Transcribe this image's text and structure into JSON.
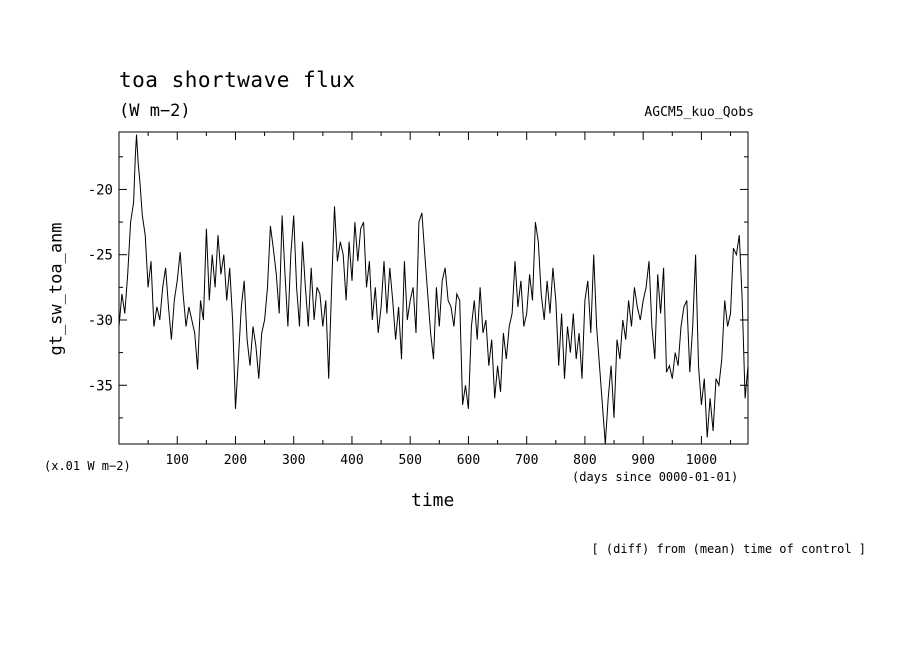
{
  "header": {
    "title": "toa shortwave flux",
    "units": "(W m−2)",
    "run_name": "AGCM5_kuo_Qobs"
  },
  "footer": {
    "note": "[ (diff) from (mean) time of control ]"
  },
  "axes": {
    "scale_note": "(x.01 W m−2)",
    "x_units": "(days since 0000-01-01)",
    "xlabel": "time",
    "ylabel": "gt_sw_toa_anm"
  },
  "chart_data": {
    "type": "line",
    "title": "toa shortwave flux",
    "xlabel": "time",
    "ylabel": "gt_sw_toa_anm",
    "xlim": [
      0,
      1080
    ],
    "ylim": [
      -39.5,
      -15.6
    ],
    "x_ticks": [
      100,
      200,
      300,
      400,
      500,
      600,
      700,
      800,
      900,
      1000
    ],
    "y_ticks": [
      -20,
      -25,
      -30,
      -35
    ],
    "grid": false,
    "series": [
      {
        "x": [
          0,
          5,
          10,
          15,
          20,
          25,
          28,
          30,
          33,
          36,
          40,
          45,
          50,
          55,
          60,
          65,
          70,
          75,
          80,
          85,
          90,
          95,
          100,
          105,
          110,
          115,
          120,
          125,
          130,
          135,
          140,
          145,
          150,
          155,
          160,
          165,
          170,
          175,
          180,
          185,
          190,
          195,
          200,
          205,
          210,
          215,
          220,
          225,
          230,
          235,
          240,
          245,
          250,
          255,
          260,
          265,
          270,
          275,
          280,
          285,
          290,
          295,
          300,
          305,
          310,
          315,
          320,
          325,
          330,
          335,
          340,
          345,
          350,
          355,
          360,
          365,
          370,
          375,
          380,
          385,
          390,
          395,
          400,
          405,
          410,
          415,
          420,
          425,
          430,
          435,
          440,
          445,
          450,
          455,
          460,
          465,
          470,
          475,
          480,
          485,
          490,
          495,
          500,
          505,
          510,
          515,
          520,
          525,
          530,
          535,
          540,
          545,
          550,
          555,
          560,
          565,
          570,
          575,
          580,
          585,
          590,
          595,
          600,
          605,
          610,
          615,
          620,
          625,
          630,
          635,
          640,
          645,
          650,
          655,
          660,
          665,
          670,
          675,
          680,
          685,
          690,
          695,
          700,
          705,
          710,
          715,
          720,
          725,
          730,
          735,
          740,
          745,
          750,
          755,
          760,
          765,
          770,
          775,
          780,
          785,
          790,
          795,
          800,
          805,
          810,
          815,
          820,
          825,
          830,
          835,
          840,
          845,
          850,
          855,
          860,
          865,
          870,
          875,
          880,
          885,
          890,
          895,
          900,
          905,
          910,
          915,
          920,
          925,
          930,
          935,
          940,
          945,
          950,
          955,
          960,
          965,
          970,
          975,
          980,
          985,
          990,
          995,
          1000,
          1005,
          1010,
          1015,
          1020,
          1025,
          1030,
          1035,
          1040,
          1045,
          1050,
          1055,
          1060,
          1065,
          1070,
          1075,
          1080
        ],
        "y": [
          -30.5,
          -28.0,
          -29.5,
          -26.5,
          -22.5,
          -21.0,
          -17.5,
          -15.8,
          -18.0,
          -19.5,
          -22.0,
          -23.5,
          -27.5,
          -25.5,
          -30.5,
          -29.0,
          -30.0,
          -27.5,
          -26.0,
          -29.0,
          -31.5,
          -28.5,
          -27.0,
          -24.8,
          -28.0,
          -30.5,
          -29.0,
          -30.0,
          -31.0,
          -33.8,
          -28.5,
          -30.0,
          -23.0,
          -28.5,
          -25.0,
          -27.5,
          -23.5,
          -26.5,
          -25.0,
          -28.5,
          -26.0,
          -30.0,
          -36.8,
          -33.0,
          -29.0,
          -27.0,
          -31.5,
          -33.5,
          -30.5,
          -32.0,
          -34.5,
          -31.0,
          -30.0,
          -27.5,
          -22.8,
          -24.5,
          -26.5,
          -29.5,
          -22.0,
          -26.5,
          -30.5,
          -25.0,
          -22.0,
          -27.5,
          -30.5,
          -24.0,
          -27.5,
          -30.5,
          -26.0,
          -30.0,
          -27.5,
          -28.0,
          -30.5,
          -28.5,
          -34.5,
          -27.5,
          -21.3,
          -25.5,
          -24.0,
          -25.0,
          -28.5,
          -24.0,
          -27.0,
          -22.5,
          -25.5,
          -23.0,
          -22.5,
          -27.5,
          -25.5,
          -30.0,
          -27.5,
          -31.0,
          -29.0,
          -25.5,
          -29.5,
          -26.0,
          -28.5,
          -31.5,
          -29.0,
          -33.0,
          -25.5,
          -30.0,
          -28.5,
          -27.5,
          -31.0,
          -22.5,
          -21.8,
          -25.0,
          -28.0,
          -31.0,
          -33.0,
          -27.5,
          -30.5,
          -27.0,
          -26.0,
          -28.5,
          -29.0,
          -30.5,
          -28.0,
          -28.5,
          -36.5,
          -35.0,
          -36.8,
          -30.5,
          -28.5,
          -31.5,
          -27.5,
          -31.0,
          -30.0,
          -33.5,
          -31.5,
          -36.0,
          -33.5,
          -35.5,
          -31.0,
          -33.0,
          -30.5,
          -29.5,
          -25.5,
          -29.0,
          -27.0,
          -30.5,
          -29.5,
          -26.5,
          -28.5,
          -22.5,
          -24.0,
          -28.0,
          -30.0,
          -27.0,
          -29.5,
          -26.0,
          -28.5,
          -33.5,
          -29.5,
          -34.5,
          -30.5,
          -32.5,
          -29.5,
          -33.0,
          -31.0,
          -34.5,
          -28.5,
          -27.0,
          -31.0,
          -25.0,
          -30.5,
          -33.5,
          -36.5,
          -39.5,
          -36.0,
          -33.5,
          -37.5,
          -31.5,
          -33.0,
          -30.0,
          -31.5,
          -28.5,
          -30.5,
          -27.5,
          -29.0,
          -30.0,
          -28.5,
          -27.5,
          -25.5,
          -30.5,
          -33.0,
          -26.5,
          -29.5,
          -26.0,
          -34.0,
          -33.5,
          -34.5,
          -32.5,
          -33.5,
          -30.5,
          -29.0,
          -28.5,
          -34.0,
          -30.5,
          -25.0,
          -33.5,
          -36.5,
          -34.5,
          -39.0,
          -36.0,
          -38.5,
          -34.5,
          -35.0,
          -33.0,
          -28.5,
          -30.5,
          -29.5,
          -24.5,
          -25.0,
          -23.5,
          -28.5,
          -36.0,
          -33.5
        ]
      }
    ]
  }
}
